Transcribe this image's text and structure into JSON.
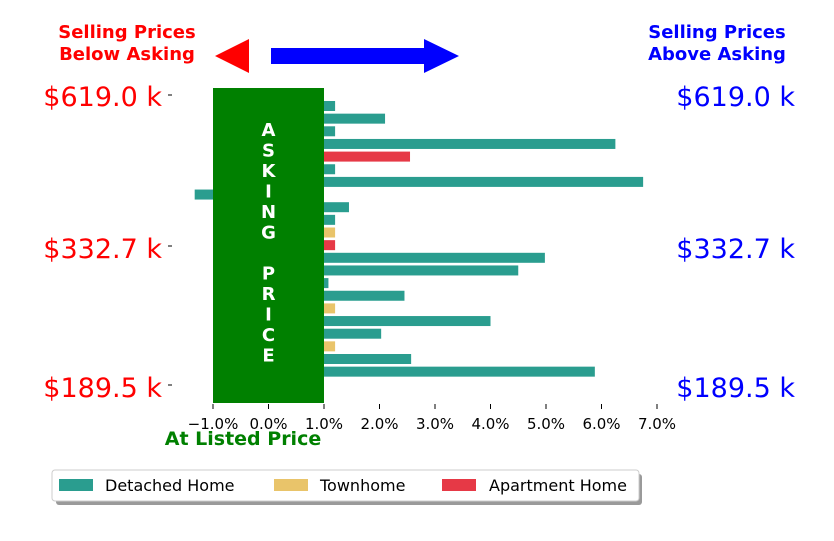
{
  "chart_data": {
    "type": "bar",
    "orientation": "horizontal",
    "xlim": [
      -1.1,
      7.2
    ],
    "x_ticks": [
      "−1.0%",
      "0.0%",
      "1.0%",
      "2.0%",
      "3.0%",
      "4.0%",
      "5.0%",
      "6.0%",
      "7.0%"
    ],
    "x_tick_values": [
      -1,
      0,
      1,
      2,
      3,
      4,
      5,
      6,
      7
    ],
    "xlabel": "At Listed Price",
    "header_left": [
      "Selling Prices",
      "Below Asking"
    ],
    "header_right": [
      "Selling Prices",
      "Above Asking"
    ],
    "price_labels": [
      "$619.0 k",
      "$332.7 k",
      "$189.5 k"
    ],
    "asking_band": {
      "from": -1.0,
      "to": 1.0,
      "label_top": "ASKING",
      "label_bottom": "PRICE"
    },
    "series_colors": {
      "Detached Home": "#2a9d8f",
      "Townhome": "#e9c46a",
      "Apartment Home": "#e63946"
    },
    "bars": [
      {
        "series": "Detached Home",
        "value": 1.2
      },
      {
        "series": "Detached Home",
        "value": 2.1
      },
      {
        "series": "Detached Home",
        "value": 1.2
      },
      {
        "series": "Detached Home",
        "value": 6.25
      },
      {
        "series": "Apartment Home",
        "value": 2.55
      },
      {
        "series": "Detached Home",
        "value": 1.2
      },
      {
        "series": "Detached Home",
        "value": 6.75
      },
      {
        "series": "Detached Home",
        "value": -1.33
      },
      {
        "series": "Detached Home",
        "value": 1.45
      },
      {
        "series": "Detached Home",
        "value": 1.2
      },
      {
        "series": "Townhome",
        "value": 1.2
      },
      {
        "series": "Apartment Home",
        "value": 1.2
      },
      {
        "series": "Detached Home",
        "value": 4.98
      },
      {
        "series": "Detached Home",
        "value": 4.5
      },
      {
        "series": "Detached Home",
        "value": 1.08
      },
      {
        "series": "Detached Home",
        "value": 2.45
      },
      {
        "series": "Townhome",
        "value": 1.2
      },
      {
        "series": "Detached Home",
        "value": 4.0
      },
      {
        "series": "Detached Home",
        "value": 2.03
      },
      {
        "series": "Townhome",
        "value": 1.2
      },
      {
        "series": "Detached Home",
        "value": 2.57
      },
      {
        "series": "Detached Home",
        "value": 5.88
      }
    ],
    "legend": [
      "Detached Home",
      "Townhome",
      "Apartment Home"
    ],
    "legend_position": "bottom"
  }
}
